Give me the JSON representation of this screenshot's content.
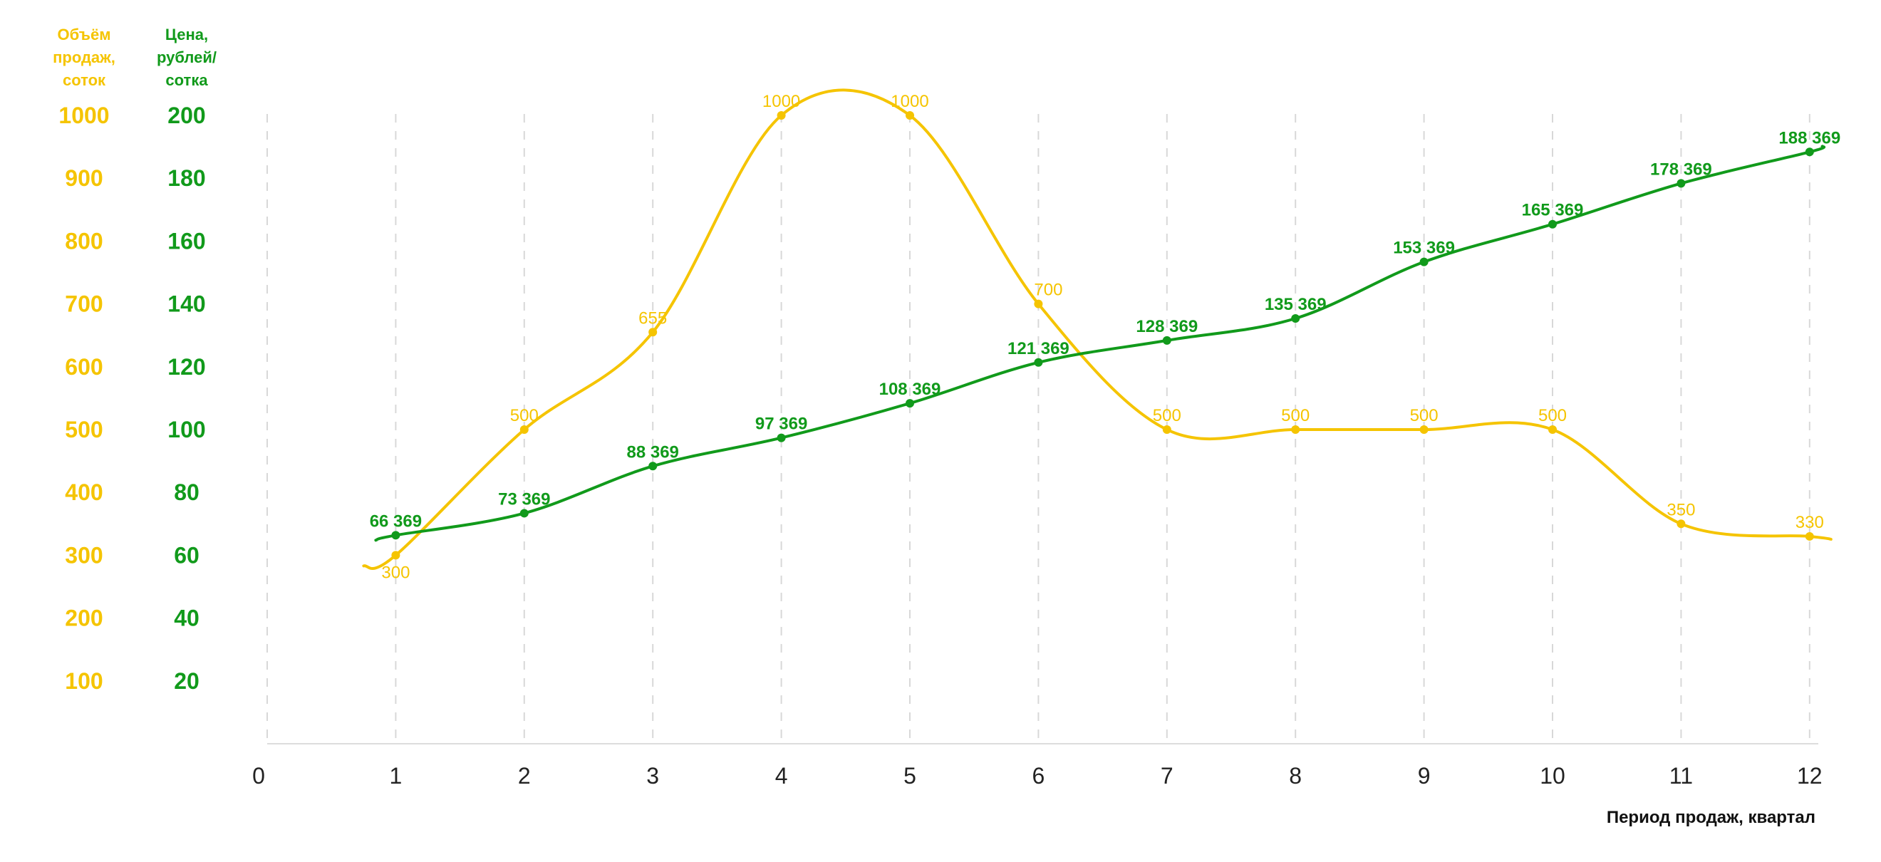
{
  "chart_data": {
    "type": "line",
    "x": [
      1,
      2,
      3,
      4,
      5,
      6,
      7,
      8,
      9,
      10,
      11,
      12
    ],
    "xticks": [
      "0",
      "1",
      "2",
      "3",
      "4",
      "5",
      "6",
      "7",
      "8",
      "9",
      "10",
      "11",
      "12"
    ],
    "xlabel": "Период продаж, квартал",
    "xlim": [
      0,
      12
    ],
    "left_axis": {
      "title": [
        "Объём",
        "продаж,",
        "соток"
      ],
      "ticks": [
        "1000",
        "900",
        "800",
        "700",
        "600",
        "500",
        "400",
        "300",
        "200",
        "100"
      ],
      "range": [
        0,
        1000
      ],
      "color": "#F5C400"
    },
    "right_axis": {
      "title": [
        "Цена,",
        "рублей/",
        "сотка"
      ],
      "ticks": [
        "200",
        "180",
        "160",
        "140",
        "120",
        "100",
        "80",
        "60",
        "40",
        "20"
      ],
      "range": [
        0,
        200
      ],
      "color": "#119A1B"
    },
    "series": [
      {
        "axis": "left",
        "color": "#F5C400",
        "values": [
          300,
          500,
          655,
          1000,
          1000,
          700,
          500,
          500,
          500,
          500,
          350,
          330
        ],
        "labels": [
          "300",
          "500",
          "655",
          "1000",
          "1000",
          "700",
          "500",
          "500",
          "500",
          "500",
          "350",
          "330"
        ]
      },
      {
        "axis": "right",
        "color": "#119A1B",
        "values": [
          66369,
          73369,
          88369,
          97369,
          108369,
          121369,
          128369,
          135369,
          153369,
          165369,
          178369,
          188369
        ],
        "labels": [
          "66 369",
          "73 369",
          "88 369",
          "97 369",
          "108 369",
          "121 369",
          "128 369",
          "135 369",
          "153 369",
          "165 369",
          "178 369",
          "188 369"
        ]
      }
    ],
    "grid": "vertical-dashed"
  }
}
